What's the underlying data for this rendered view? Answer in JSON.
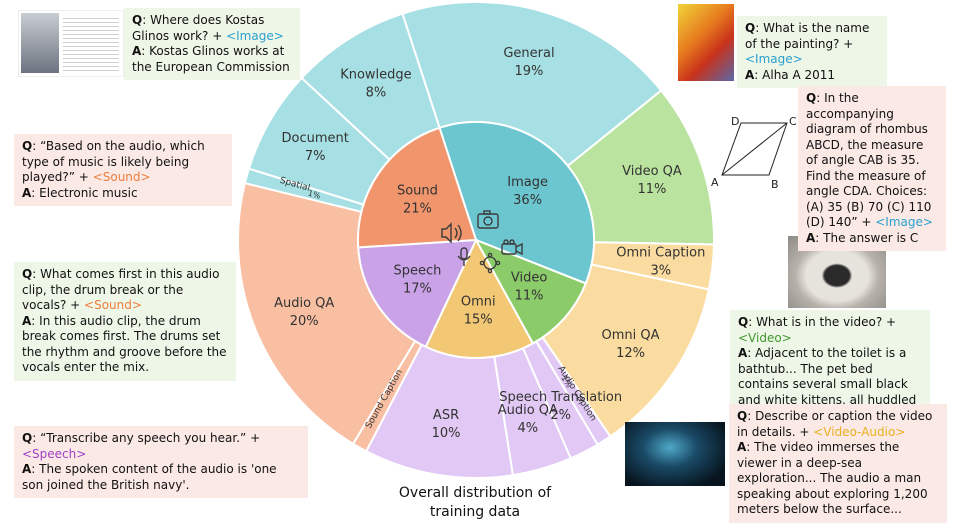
{
  "chart_data": {
    "type": "sunburst",
    "title": "Overall distribution of training data",
    "inner": [
      {
        "name": "Image",
        "value": 36,
        "label": "36%",
        "color": "#6cc6d0"
      },
      {
        "name": "Video",
        "value": 11,
        "label": "11%",
        "color": "#8ccb6a"
      },
      {
        "name": "Omni",
        "value": 15,
        "label": "15%",
        "color": "#f3c875"
      },
      {
        "name": "Speech",
        "value": 17,
        "label": "17%",
        "color": "#c9a2e8"
      },
      {
        "name": "Sound",
        "value": 21,
        "label": "21%",
        "color": "#f0956c"
      }
    ],
    "outer": [
      {
        "name": "General",
        "value": 19,
        "label": "19%",
        "parent": "Image",
        "color": "#a7e0e4"
      },
      {
        "name": "Video QA",
        "value": 11,
        "label": "11%",
        "parent": "Video",
        "color": "#b9e39f"
      },
      {
        "name": "Omni Caption",
        "value": 3,
        "label": "3%",
        "parent": "Omni",
        "color": "#fbdca0"
      },
      {
        "name": "Omni QA",
        "value": 12,
        "label": "12%",
        "parent": "Omni",
        "color": "#fbdca0"
      },
      {
        "name": "Audio Caption",
        "value": 1,
        "label": "1%",
        "parent": "Speech",
        "color": "#e2c9f5"
      },
      {
        "name": "Speech Translation",
        "value": 2,
        "label": "2%",
        "parent": "Speech",
        "color": "#e2c9f5"
      },
      {
        "name": "Audio QA",
        "value": 4,
        "label": "4%",
        "parent": "Speech",
        "color": "#e2c9f5"
      },
      {
        "name": "ASR",
        "value": 10,
        "label": "10%",
        "parent": "Speech",
        "color": "#e2c9f5"
      },
      {
        "name": "Sound Caption",
        "value": 1,
        "label": "",
        "parent": "Sound",
        "color": "#f9bfa2"
      },
      {
        "name": "Audio QA",
        "value": 20,
        "label": "20%",
        "parent": "Sound",
        "color": "#f9bfa2"
      },
      {
        "name": "Spatial",
        "value": 1,
        "label": "1%",
        "parent": "Image",
        "color": "#a7e0e4"
      },
      {
        "name": "Document",
        "value": 7,
        "label": "7%",
        "parent": "Image",
        "color": "#a7e0e4"
      },
      {
        "name": "Knowledge",
        "value": 8,
        "label": "8%",
        "parent": "Image",
        "color": "#a7e0e4"
      }
    ]
  },
  "diagram": {
    "a": "A",
    "b": "B",
    "c": "C",
    "d": "D"
  },
  "cards": {
    "c1": {
      "q": "Where does Kostas Glinos work? + ",
      "tag": "<Image>",
      "a": "Kostas Glinos works at the European Commission"
    },
    "c2": {
      "q": "What is the name of the painting? + ",
      "tag": "<Image>",
      "a": "Alha A 2011"
    },
    "c3": {
      "q": "“Based on the audio, which type of music is likely being played?” + ",
      "tag": "<Sound>",
      "a": "Electronic music"
    },
    "c4": {
      "q": "In the accompanying diagram of rhombus ABCD, the measure of angle CAB is 35. Find the measure of angle CDA. Choices: (A) 35 (B) 70 (C) 110 (D) 140” + ",
      "tag": "<Image>",
      "a": "The answer is C"
    },
    "c5": {
      "q": "What comes first in this audio clip, the drum break or the vocals? + ",
      "tag": "<Sound>",
      "a": "In this audio clip, the drum break comes first. The drums set the rhythm and groove before the vocals enter the mix."
    },
    "c6": {
      "q": "What is in the video? + ",
      "tag": "<Video>",
      "a": "Adjacent to the toilet is a bathtub... The pet bed contains several small black and white kittens, all huddled together..."
    },
    "c7": {
      "q": "“Transcribe any speech you hear.” + ",
      "tag": "<Speech>",
      "a": "The spoken content of the audio is 'one son joined the British navy'."
    },
    "c8": {
      "q": "Describe or caption the video in details. + ",
      "tag": "<Video-Audio>",
      "a": "The video immerses the viewer in a deep-sea exploration... The audio a man speaking about exploring 1,200 meters below the surface..."
    }
  },
  "labels": {
    "q": "Q",
    "a": "A",
    "sep": ": "
  }
}
